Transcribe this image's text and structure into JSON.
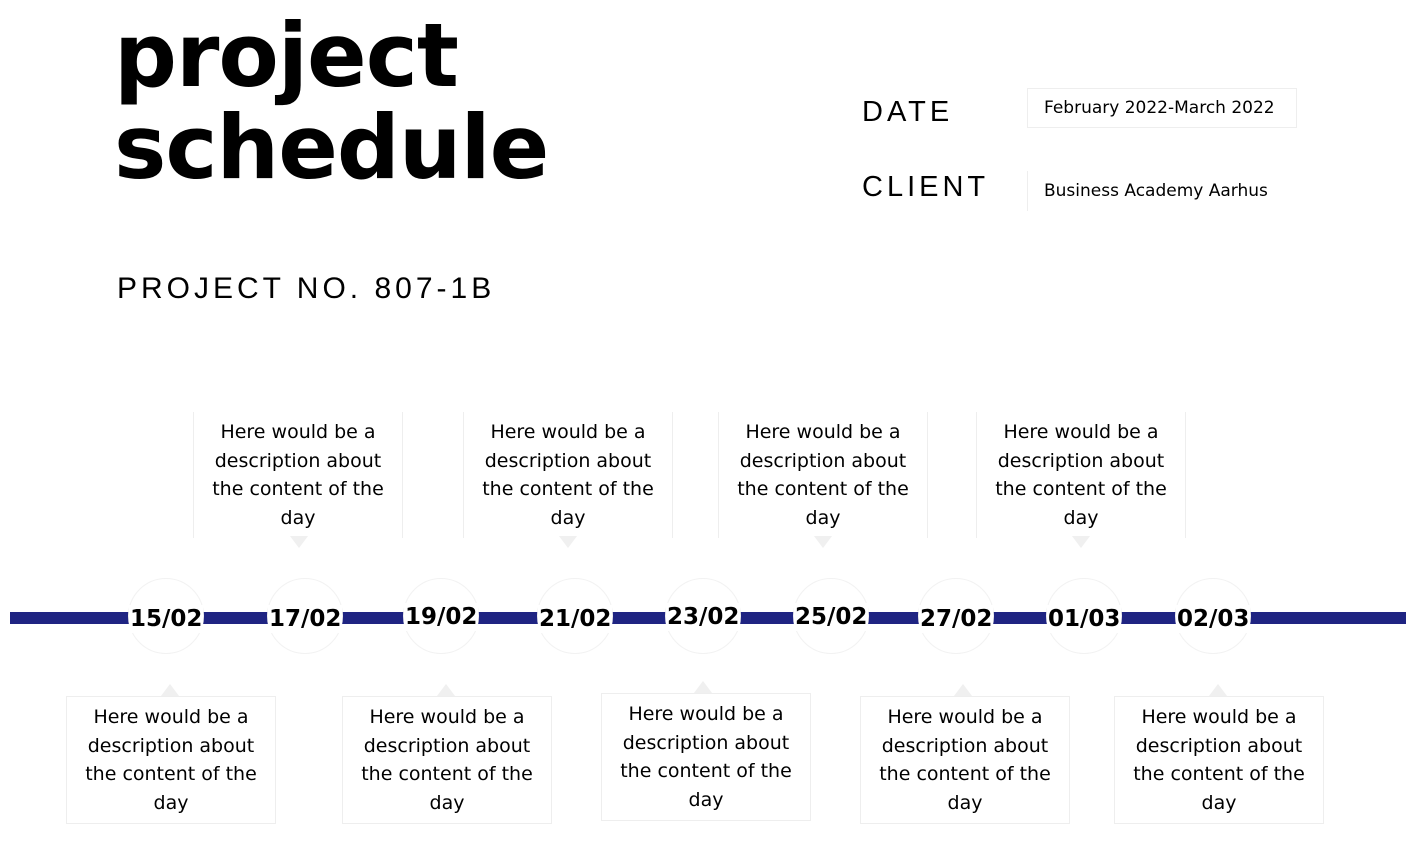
{
  "header": {
    "title_line1": "project",
    "title_line2": "schedule",
    "project_no": "PROJECT NO. 807-1B"
  },
  "meta": {
    "date_label": "DATE",
    "date_value": "February 2022-March 2022",
    "client_label": "CLIENT",
    "client_value": "Business Academy Aarhus"
  },
  "timeline": {
    "line_color": "#1f2482",
    "dates": [
      "15/02",
      "17/02",
      "19/02",
      "21/02",
      "23/02",
      "25/02",
      "27/02",
      "01/03",
      "02/03"
    ],
    "description": "Here would be a description about the content of the day"
  }
}
